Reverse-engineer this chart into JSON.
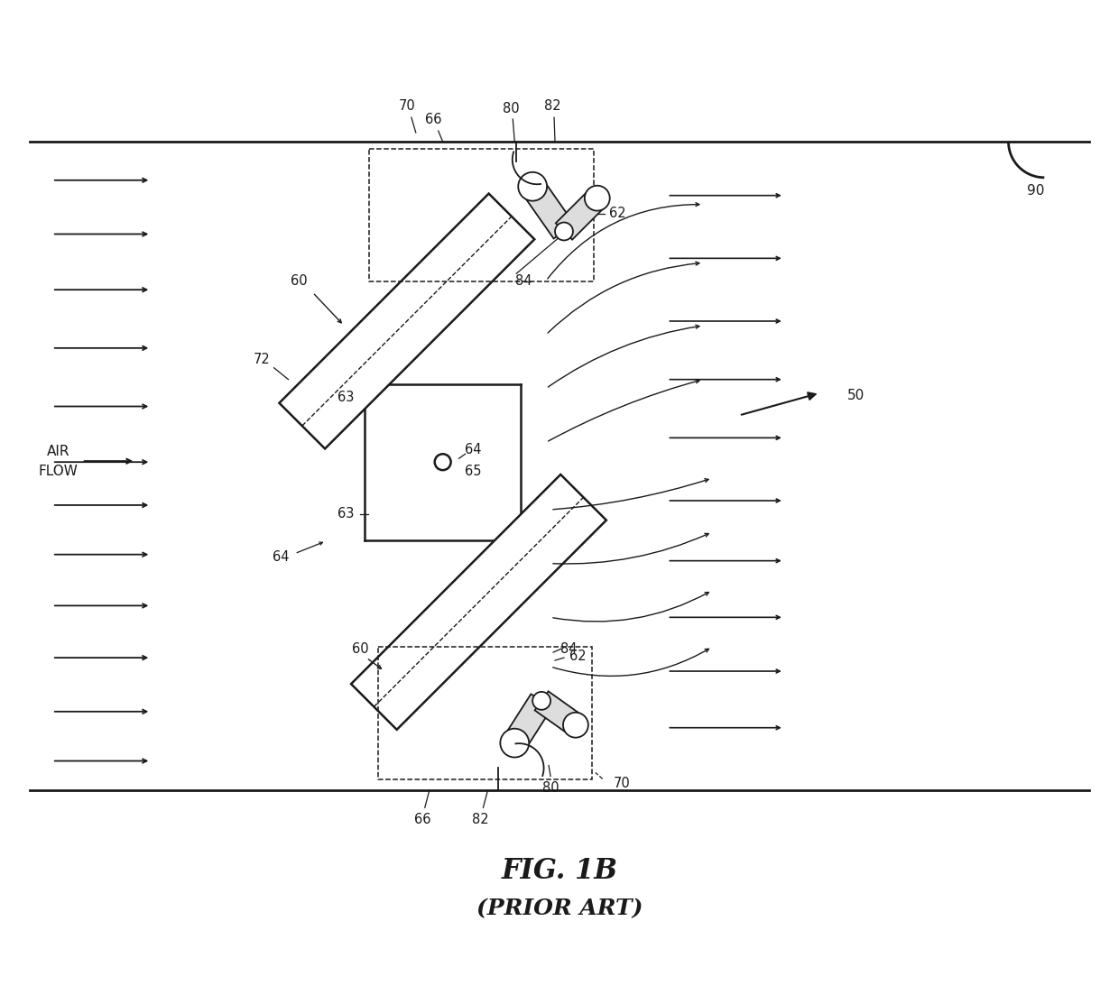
{
  "bg_color": "#ffffff",
  "line_color": "#1a1a1a",
  "title": "FIG. 1B",
  "subtitle": "(PRIOR ART)",
  "fig_width": 12.4,
  "fig_height": 11.03,
  "dpi": 100
}
